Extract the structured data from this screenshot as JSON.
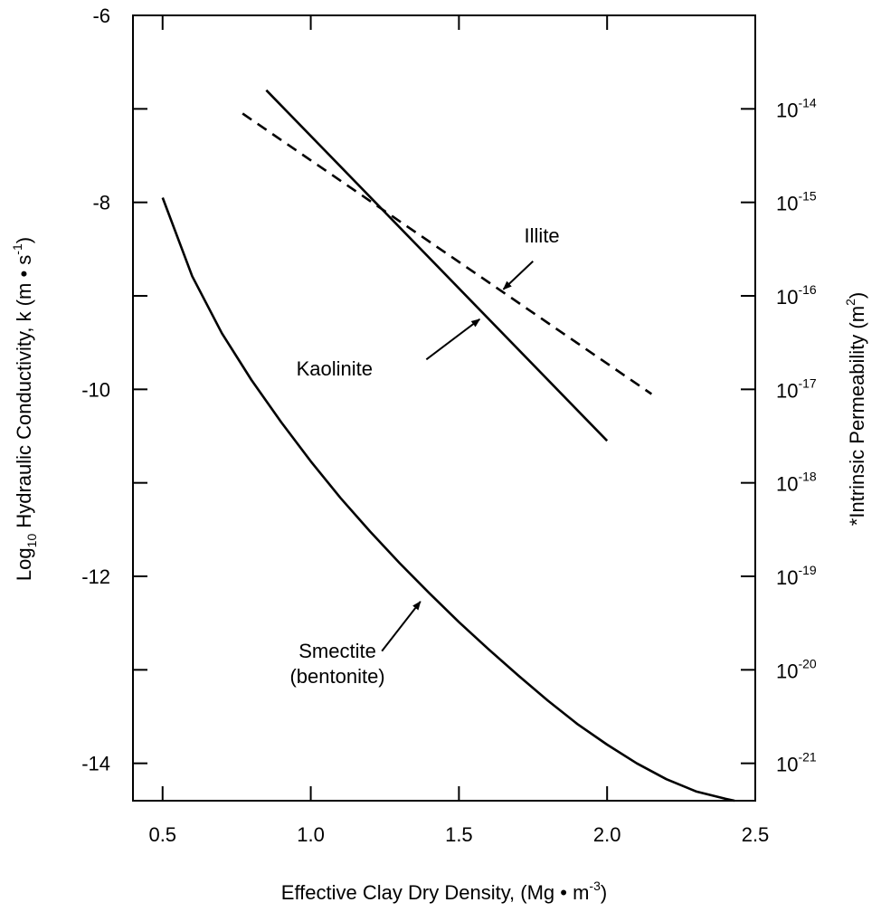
{
  "chart_data": {
    "type": "line",
    "xlabel": {
      "main": "Effective Clay Dry Density, (Mg • m",
      "sup": "-3",
      "close": ")"
    },
    "ylabel": {
      "pre": "Log",
      "sub": "10",
      "mid": " Hydraulic Conductivity, k (m • s",
      "sup": "-1",
      "close": ")"
    },
    "ylabel_right": {
      "main": "*Intrinsic Permeability (m",
      "sup": "2",
      "close": ")"
    },
    "xlim": [
      0.4,
      2.5
    ],
    "ylim": [
      -14.4,
      -6
    ],
    "x_ticks": [
      0.5,
      1.0,
      1.5,
      2.0,
      2.5
    ],
    "x_tick_labels": [
      "0.5",
      "1.0",
      "1.5",
      "2.0",
      "2.5"
    ],
    "y_ticks": [
      -6,
      -8,
      -10,
      -12,
      -14
    ],
    "y_tick_labels": [
      "-6",
      "-8",
      "-10",
      "-12",
      "-14"
    ],
    "y_minor_ticks": [
      -7,
      -9,
      -11,
      -13
    ],
    "right_ticks": [
      -7,
      -8,
      -9,
      -10,
      -11,
      -12,
      -13,
      -14
    ],
    "right_tick_labels": [
      {
        "base": "10",
        "exp": "-14"
      },
      {
        "base": "10",
        "exp": "-15"
      },
      {
        "base": "10",
        "exp": "-16"
      },
      {
        "base": "10",
        "exp": "-17"
      },
      {
        "base": "10",
        "exp": "-18"
      },
      {
        "base": "10",
        "exp": "-19"
      },
      {
        "base": "10",
        "exp": "-20"
      },
      {
        "base": "10",
        "exp": "-21"
      }
    ],
    "grid": false,
    "series": [
      {
        "name": "Smectite (bentonite)",
        "style": "solid",
        "x": [
          0.5,
          0.6,
          0.7,
          0.8,
          0.9,
          1.0,
          1.1,
          1.2,
          1.3,
          1.4,
          1.5,
          1.6,
          1.7,
          1.8,
          1.9,
          2.0,
          2.1,
          2.2,
          2.3,
          2.4,
          2.43
        ],
        "y": [
          -7.95,
          -8.79,
          -9.4,
          -9.9,
          -10.35,
          -10.77,
          -11.16,
          -11.52,
          -11.86,
          -12.18,
          -12.49,
          -12.78,
          -13.06,
          -13.33,
          -13.58,
          -13.8,
          -14.0,
          -14.17,
          -14.3,
          -14.38,
          -14.4
        ]
      },
      {
        "name": "Kaolinite",
        "style": "solid",
        "x": [
          0.85,
          2.0
        ],
        "y": [
          -6.8,
          -10.55
        ]
      },
      {
        "name": "Illite",
        "style": "dashed",
        "x": [
          0.77,
          2.15
        ],
        "y": [
          -7.05,
          -10.05
        ]
      }
    ],
    "annotations": [
      {
        "lines": [
          "Illite"
        ],
        "series": "Illite",
        "text_at": [
          1.78,
          -8.43
        ],
        "arrow_from": [
          1.75,
          -8.63
        ],
        "arrow_to": [
          1.65,
          -8.93
        ]
      },
      {
        "lines": [
          "Kaolinite"
        ],
        "series": "Kaolinite",
        "text_at": [
          1.08,
          -9.85
        ],
        "arrow_from": [
          1.39,
          -9.68
        ],
        "arrow_to": [
          1.57,
          -9.25
        ]
      },
      {
        "lines": [
          "Smectite",
          "(bentonite)"
        ],
        "series": "Smectite (bentonite)",
        "text_at": [
          1.09,
          -12.87
        ],
        "arrow_from": [
          1.24,
          -12.8
        ],
        "arrow_to": [
          1.37,
          -12.27
        ]
      }
    ]
  }
}
